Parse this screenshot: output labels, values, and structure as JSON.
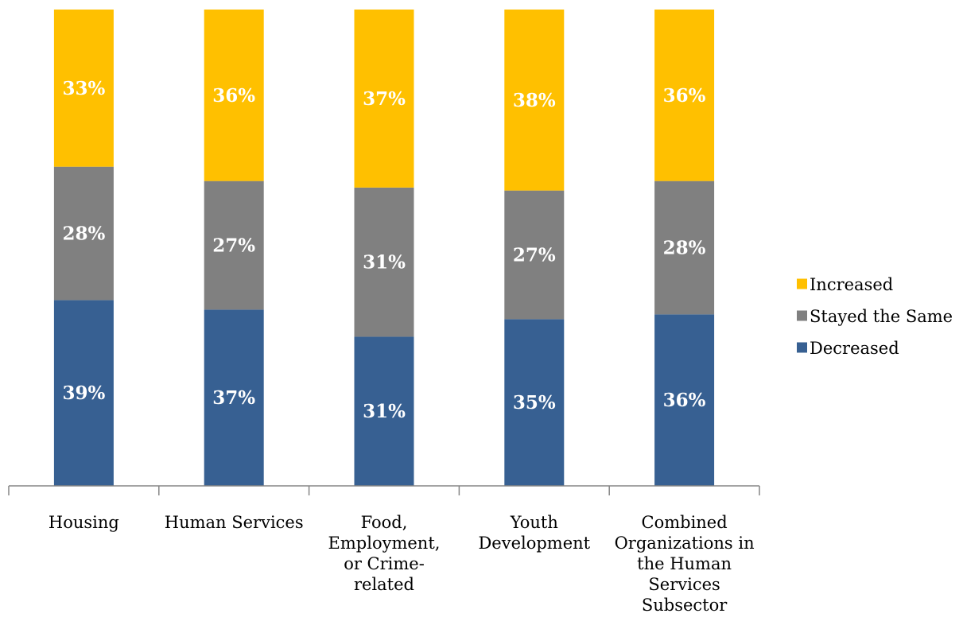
{
  "chart_data": {
    "type": "bar",
    "stacked": true,
    "percent_stacked": true,
    "categories": [
      [
        "Housing"
      ],
      [
        "Human Services"
      ],
      [
        "Food,",
        "Employment,",
        "or Crime-",
        "related"
      ],
      [
        "Youth",
        "Development"
      ],
      [
        "Combined",
        "Organizations in",
        "the Human",
        "Services",
        "Subsector"
      ]
    ],
    "series": [
      {
        "name": "Decreased",
        "color": "#376092",
        "values": [
          39,
          37,
          31,
          35,
          36
        ],
        "labels": [
          "39%",
          "37%",
          "31%",
          "35%",
          "36%"
        ]
      },
      {
        "name": "Stayed the Same",
        "color": "#808080",
        "values": [
          28,
          27,
          31,
          27,
          28
        ],
        "labels": [
          "28%",
          "27%",
          "31%",
          "27%",
          "28%"
        ]
      },
      {
        "name": "Increased",
        "color": "#FFC000",
        "values": [
          33,
          36,
          37,
          38,
          36
        ],
        "labels": [
          "33%",
          "36%",
          "37%",
          "38%",
          "36%"
        ]
      }
    ],
    "legend": {
      "position": "right",
      "order": [
        "Increased",
        "Stayed the Same",
        "Decreased"
      ]
    },
    "ylim": [
      0,
      100
    ],
    "grid": false,
    "title": "",
    "xlabel": "",
    "ylabel": ""
  }
}
